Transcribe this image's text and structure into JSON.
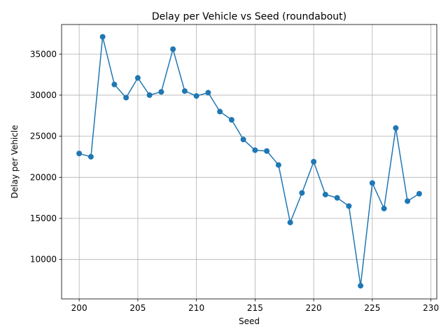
{
  "chart_data": {
    "type": "line",
    "title": "Delay per Vehicle vs Seed (roundabout)",
    "xlabel": "Seed",
    "ylabel": "Delay per Vehicle",
    "xlim": [
      198.5,
      230.5
    ],
    "ylim": [
      5200,
      38600
    ],
    "xticks": [
      200,
      205,
      210,
      215,
      220,
      225,
      230
    ],
    "yticks": [
      10000,
      15000,
      20000,
      25000,
      30000,
      35000
    ],
    "grid": true,
    "color": "#1f77b4",
    "x": [
      200,
      201,
      202,
      203,
      204,
      205,
      206,
      207,
      208,
      209,
      210,
      211,
      212,
      213,
      214,
      215,
      216,
      217,
      218,
      219,
      220,
      221,
      222,
      223,
      224,
      225,
      226,
      227,
      228,
      229
    ],
    "y": [
      22900,
      22500,
      37100,
      31300,
      29700,
      32100,
      30000,
      30400,
      35600,
      30500,
      29900,
      30300,
      28000,
      27000,
      24600,
      23300,
      23200,
      21500,
      14500,
      18100,
      21900,
      17900,
      17500,
      16500,
      6800,
      19300,
      16200,
      26000,
      17100,
      18000
    ]
  }
}
